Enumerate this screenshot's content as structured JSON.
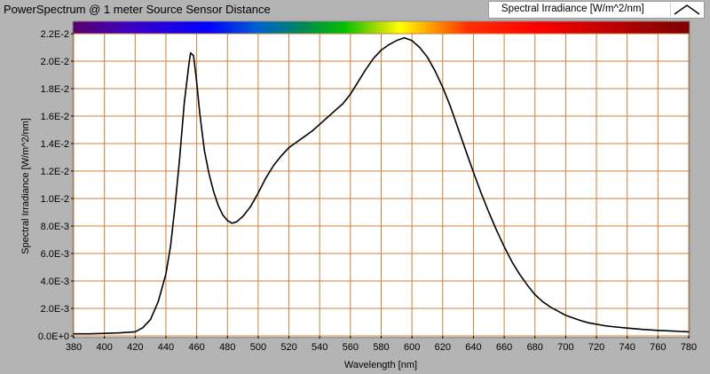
{
  "window": {
    "title": "PowerSpectrum @ 1 meter Source Sensor Distance"
  },
  "legend": {
    "label": "Spectral Irradiance [W/m^2/nm]",
    "icon": "line-plot-icon"
  },
  "colors": {
    "background": "#b4b4b4",
    "plot_background": "#ffffff",
    "grid": "#c8823c",
    "trace": "#000000"
  },
  "chart_data": {
    "type": "line",
    "title": "",
    "xlabel": "Wavelength [nm]",
    "ylabel": "Spectral Irradiance [W/m^2/nm]",
    "xlim": [
      380,
      780
    ],
    "ylim": [
      0,
      0.022
    ],
    "grid": true,
    "legend_position": "top-right",
    "x_ticks": [
      380,
      400,
      420,
      440,
      460,
      480,
      500,
      520,
      540,
      560,
      580,
      600,
      620,
      640,
      660,
      680,
      700,
      720,
      740,
      760,
      780
    ],
    "y_tick_values": [
      0,
      0.002,
      0.004,
      0.006,
      0.008,
      0.01,
      0.012,
      0.014,
      0.016,
      0.018,
      0.02,
      0.022
    ],
    "y_tick_labels": [
      "0.0E+0",
      "2.0E-3",
      "4.0E-3",
      "6.0E-3",
      "8.0E-3",
      "1.0E-2",
      "1.2E-2",
      "1.4E-2",
      "1.6E-2",
      "1.8E-2",
      "2.0E-2",
      "2.2E-2"
    ],
    "series": [
      {
        "name": "Spectral Irradiance [W/m^2/nm]",
        "x": [
          380,
          390,
          400,
          410,
          420,
          425,
          430,
          435,
          440,
          443,
          446,
          449,
          452,
          455,
          456,
          458,
          460,
          462,
          465,
          468,
          471,
          474,
          477,
          480,
          483,
          486,
          490,
          495,
          500,
          505,
          510,
          515,
          520,
          525,
          530,
          535,
          540,
          545,
          550,
          555,
          560,
          565,
          570,
          575,
          580,
          585,
          590,
          595,
          600,
          605,
          610,
          615,
          620,
          625,
          630,
          635,
          640,
          645,
          650,
          655,
          660,
          665,
          670,
          675,
          680,
          685,
          690,
          695,
          700,
          705,
          710,
          715,
          720,
          725,
          730,
          740,
          750,
          760,
          770,
          780
        ],
        "y": [
          0.00015,
          0.00015,
          0.00018,
          0.00022,
          0.0003,
          0.0006,
          0.0012,
          0.0025,
          0.0045,
          0.0065,
          0.0095,
          0.013,
          0.017,
          0.0198,
          0.0206,
          0.0204,
          0.0185,
          0.0162,
          0.0135,
          0.0118,
          0.0105,
          0.0095,
          0.0088,
          0.0084,
          0.0082,
          0.0083,
          0.0087,
          0.0094,
          0.0104,
          0.0115,
          0.0124,
          0.0131,
          0.0137,
          0.0141,
          0.0145,
          0.0149,
          0.0154,
          0.0159,
          0.0164,
          0.0169,
          0.0176,
          0.0185,
          0.0194,
          0.0202,
          0.0208,
          0.0212,
          0.0215,
          0.0217,
          0.0215,
          0.021,
          0.0203,
          0.0193,
          0.0181,
          0.0167,
          0.0151,
          0.0135,
          0.0119,
          0.0104,
          0.009,
          0.0077,
          0.0065,
          0.0054,
          0.0045,
          0.0037,
          0.003,
          0.0025,
          0.0021,
          0.0018,
          0.0015,
          0.0013,
          0.0011,
          0.00095,
          0.00085,
          0.00075,
          0.00068,
          0.00057,
          0.00047,
          0.0004,
          0.00035,
          0.0003
        ]
      }
    ]
  }
}
